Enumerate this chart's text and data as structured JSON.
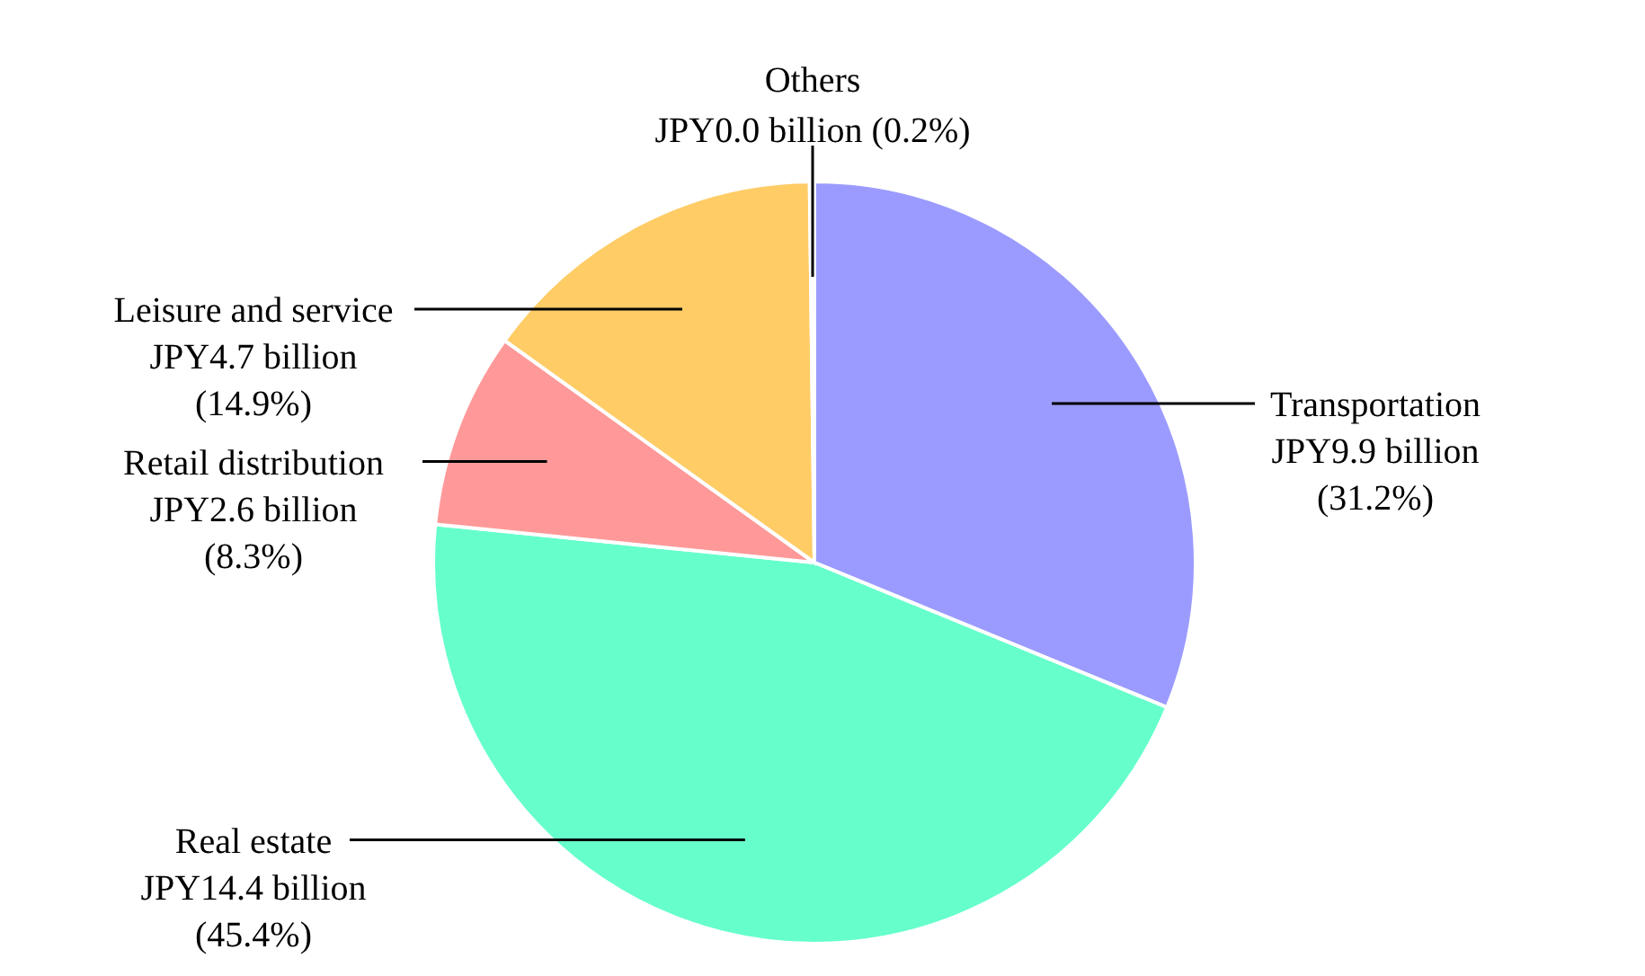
{
  "chart_data": {
    "type": "pie",
    "categories": [
      "Transportation",
      "Real estate",
      "Retail  distribution",
      "Leisure and service",
      "Others"
    ],
    "values": [
      31.2,
      45.4,
      8.3,
      14.9,
      0.2
    ],
    "colors": [
      "#9b9bff",
      "#66ffcc",
      "#ff9999",
      "#ffcc66",
      "#ffff99"
    ],
    "value_labels": [
      "JPY9.9 billion (31.2%)",
      "JPY14.4 billion (45.4%)",
      "JPY2.6 billion (8.3%)",
      "JPY4.7 billion (14.9%)",
      "JPY0.0 billion (0.2%)"
    ],
    "legend": false
  }
}
